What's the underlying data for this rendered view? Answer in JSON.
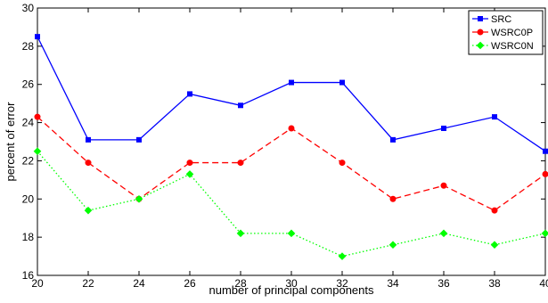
{
  "chart_data": {
    "type": "line",
    "title": "",
    "xlabel": "number of principal components",
    "ylabel": "percent of error",
    "x": [
      20,
      22,
      24,
      26,
      28,
      30,
      32,
      34,
      36,
      38,
      40
    ],
    "xlim": [
      20,
      40
    ],
    "ylim": [
      16,
      30
    ],
    "xticks": [
      20,
      22,
      24,
      26,
      28,
      30,
      32,
      34,
      36,
      38,
      40
    ],
    "yticks": [
      16,
      18,
      20,
      22,
      24,
      26,
      28,
      30
    ],
    "grid": false,
    "legend_position": "top-right",
    "series": [
      {
        "name": "SRC",
        "color": "#0000ff",
        "line_style": "solid",
        "marker": "square",
        "values": [
          28.5,
          23.1,
          23.1,
          25.5,
          24.9,
          26.1,
          26.1,
          23.1,
          23.7,
          24.3,
          22.5
        ]
      },
      {
        "name": "WSRC0P",
        "color": "#ff0000",
        "line_style": "dashed",
        "marker": "circle",
        "values": [
          24.3,
          21.9,
          20.0,
          21.9,
          21.9,
          23.7,
          21.9,
          20.0,
          20.7,
          19.4,
          21.3
        ]
      },
      {
        "name": "WSRC0N",
        "color": "#00ff00",
        "line_style": "dotted",
        "marker": "diamond",
        "values": [
          22.5,
          19.4,
          20.0,
          21.3,
          18.2,
          18.2,
          17.0,
          17.6,
          18.2,
          17.6,
          18.2
        ]
      }
    ]
  }
}
